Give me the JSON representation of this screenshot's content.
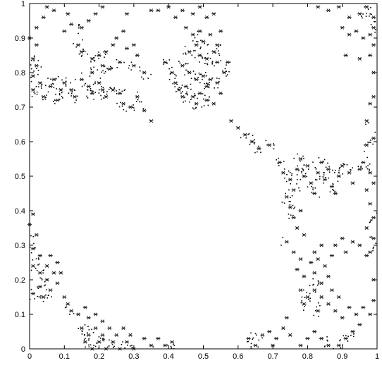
{
  "chart_data": {
    "type": "scatter",
    "title": "",
    "xlabel": "",
    "ylabel": "",
    "xlim": [
      0,
      1
    ],
    "ylim": [
      0,
      1
    ],
    "grid": false,
    "legend": "none",
    "marker_color": "#000000",
    "marker_style": "small cross-shaped motifs forming a fractal (Apollonian-like) packing pattern",
    "x_ticks": [
      "0",
      "0.1",
      "0.2",
      "0.3",
      "0.4",
      "0.5",
      "0.6",
      "0.7",
      "0.8",
      "0.9",
      "1"
    ],
    "y_ticks": [
      "0",
      "0.1",
      "0.2",
      "0.3",
      "0.4",
      "0.5",
      "0.6",
      "0.7",
      "0.8",
      "0.9",
      "1"
    ],
    "empty_regions": [
      {
        "cx": 0.36,
        "cy": 0.35,
        "r": 0.34
      },
      {
        "cx": 0.8,
        "cy": 0.8,
        "r": 0.22
      },
      {
        "cx": 0.32,
        "cy": 1.02,
        "r": 0.19
      },
      {
        "cx": 0.6,
        "cy": 0.99,
        "r": 0.12
      },
      {
        "cx": 0.06,
        "cy": 0.94,
        "r": 0.08
      },
      {
        "cx": 0.17,
        "cy": 0.63,
        "r": 0.06
      },
      {
        "cx": 0.95,
        "cy": 0.17,
        "r": 0.12
      },
      {
        "cx": 0.86,
        "cy": 0.32,
        "r": 0.12
      },
      {
        "cx": 0.76,
        "cy": 0.02,
        "r": 0.09
      },
      {
        "cx": 0.6,
        "cy": 0.7,
        "r": 0.08
      },
      {
        "cx": 0.01,
        "cy": 0.45,
        "r": 0.12
      },
      {
        "cx": 0.22,
        "cy": 0.94,
        "r": 0.05
      },
      {
        "cx": 0.95,
        "cy": 0.45,
        "r": 0.07
      },
      {
        "cx": 0.74,
        "cy": 0.21,
        "r": 0.06
      }
    ],
    "points": [
      [
        0.05,
        0.99
      ],
      [
        0.07,
        0.98
      ],
      [
        0.11,
        0.97
      ],
      [
        0.12,
        0.94
      ],
      [
        0.1,
        0.92
      ],
      [
        0.15,
        0.93
      ],
      [
        0.17,
        0.95
      ],
      [
        0.19,
        0.97
      ],
      [
        0.21,
        0.99
      ],
      [
        0.14,
        0.88
      ],
      [
        0.15,
        0.86
      ],
      [
        0.18,
        0.84
      ],
      [
        0.2,
        0.85
      ],
      [
        0.22,
        0.86
      ],
      [
        0.24,
        0.88
      ],
      [
        0.25,
        0.9
      ],
      [
        0.27,
        0.92
      ],
      [
        0.28,
        0.97
      ],
      [
        0.35,
        0.98
      ],
      [
        0.18,
        0.8
      ],
      [
        0.21,
        0.82
      ],
      [
        0.23,
        0.81
      ],
      [
        0.26,
        0.83
      ],
      [
        0.28,
        0.87
      ],
      [
        0.3,
        0.88
      ],
      [
        0.31,
        0.85
      ],
      [
        0.3,
        0.82
      ],
      [
        0.33,
        0.8
      ],
      [
        0.04,
        0.96
      ],
      [
        0.02,
        0.93
      ],
      [
        0.0,
        0.9
      ],
      [
        0.02,
        0.88
      ],
      [
        0.01,
        0.84
      ],
      [
        0.02,
        0.82
      ],
      [
        0.01,
        0.79
      ],
      [
        0.03,
        0.77
      ],
      [
        0.01,
        0.75
      ],
      [
        0.04,
        0.73
      ],
      [
        0.06,
        0.76
      ],
      [
        0.07,
        0.78
      ],
      [
        0.09,
        0.75
      ],
      [
        0.08,
        0.72
      ],
      [
        0.1,
        0.77
      ],
      [
        0.12,
        0.75
      ],
      [
        0.13,
        0.73
      ],
      [
        0.15,
        0.78
      ],
      [
        0.17,
        0.76
      ],
      [
        0.18,
        0.74
      ],
      [
        0.2,
        0.77
      ],
      [
        0.21,
        0.75
      ],
      [
        0.22,
        0.73
      ],
      [
        0.24,
        0.75
      ],
      [
        0.26,
        0.74
      ],
      [
        0.27,
        0.71
      ],
      [
        0.29,
        0.7
      ],
      [
        0.31,
        0.73
      ],
      [
        0.33,
        0.69
      ],
      [
        0.35,
        0.66
      ],
      [
        0.37,
        0.98
      ],
      [
        0.4,
        0.99
      ],
      [
        0.42,
        0.96
      ],
      [
        0.44,
        0.98
      ],
      [
        0.47,
        0.97
      ],
      [
        0.49,
        0.99
      ],
      [
        0.51,
        0.96
      ],
      [
        0.53,
        0.97
      ],
      [
        0.45,
        0.93
      ],
      [
        0.47,
        0.91
      ],
      [
        0.49,
        0.92
      ],
      [
        0.5,
        0.89
      ],
      [
        0.52,
        0.91
      ],
      [
        0.48,
        0.88
      ],
      [
        0.46,
        0.86
      ],
      [
        0.49,
        0.85
      ],
      [
        0.51,
        0.84
      ],
      [
        0.53,
        0.86
      ],
      [
        0.44,
        0.82
      ],
      [
        0.46,
        0.8
      ],
      [
        0.48,
        0.78
      ],
      [
        0.5,
        0.79
      ],
      [
        0.52,
        0.78
      ],
      [
        0.51,
        0.76
      ],
      [
        0.49,
        0.74
      ],
      [
        0.51,
        0.72
      ],
      [
        0.53,
        0.71
      ],
      [
        0.55,
        0.74
      ],
      [
        0.54,
        0.77
      ],
      [
        0.56,
        0.8
      ],
      [
        0.57,
        0.83
      ],
      [
        0.54,
        0.83
      ],
      [
        0.54,
        0.88
      ],
      [
        0.55,
        0.92
      ],
      [
        0.39,
        0.83
      ],
      [
        0.41,
        0.8
      ],
      [
        0.42,
        0.77
      ],
      [
        0.43,
        0.75
      ],
      [
        0.45,
        0.76
      ],
      [
        0.44,
        0.73
      ],
      [
        0.47,
        0.73
      ],
      [
        0.48,
        0.71
      ],
      [
        0.58,
        0.66
      ],
      [
        0.6,
        0.64
      ],
      [
        0.62,
        0.62
      ],
      [
        0.64,
        0.6
      ],
      [
        0.66,
        0.58
      ],
      [
        0.69,
        0.59
      ],
      [
        0.83,
        0.99
      ],
      [
        0.86,
        0.98
      ],
      [
        0.89,
        0.99
      ],
      [
        0.92,
        0.96
      ],
      [
        0.95,
        0.97
      ],
      [
        0.97,
        0.99
      ],
      [
        0.99,
        0.96
      ],
      [
        0.99,
        0.93
      ],
      [
        0.9,
        0.93
      ],
      [
        0.92,
        0.91
      ],
      [
        0.94,
        0.92
      ],
      [
        0.96,
        0.9
      ],
      [
        0.98,
        0.91
      ],
      [
        0.99,
        0.88
      ],
      [
        0.91,
        0.85
      ],
      [
        0.95,
        0.84
      ],
      [
        0.98,
        0.85
      ],
      [
        0.99,
        0.8
      ],
      [
        0.99,
        0.73
      ],
      [
        0.98,
        0.71
      ],
      [
        0.97,
        0.66
      ],
      [
        0.99,
        0.61
      ],
      [
        0.97,
        0.59
      ],
      [
        0.72,
        0.54
      ],
      [
        0.73,
        0.51
      ],
      [
        0.75,
        0.49
      ],
      [
        0.77,
        0.52
      ],
      [
        0.78,
        0.55
      ],
      [
        0.8,
        0.53
      ],
      [
        0.79,
        0.5
      ],
      [
        0.81,
        0.48
      ],
      [
        0.83,
        0.51
      ],
      [
        0.84,
        0.54
      ],
      [
        0.86,
        0.52
      ],
      [
        0.85,
        0.49
      ],
      [
        0.87,
        0.47
      ],
      [
        0.89,
        0.5
      ],
      [
        0.9,
        0.53
      ],
      [
        0.92,
        0.51
      ],
      [
        0.93,
        0.48
      ],
      [
        0.95,
        0.52
      ],
      [
        0.96,
        0.54
      ],
      [
        0.98,
        0.51
      ],
      [
        0.99,
        0.48
      ],
      [
        0.97,
        0.46
      ],
      [
        0.88,
        0.45
      ],
      [
        0.82,
        0.45
      ],
      [
        0.76,
        0.46
      ],
      [
        0.74,
        0.44
      ],
      [
        0.75,
        0.41
      ],
      [
        0.76,
        0.38
      ],
      [
        0.78,
        0.4
      ],
      [
        0.77,
        0.35
      ],
      [
        0.79,
        0.33
      ],
      [
        0.98,
        0.42
      ],
      [
        0.99,
        0.38
      ],
      [
        0.97,
        0.35
      ],
      [
        0.99,
        0.32
      ],
      [
        0.98,
        0.28
      ],
      [
        0.74,
        0.31
      ],
      [
        0.76,
        0.28
      ],
      [
        0.78,
        0.26
      ],
      [
        0.77,
        0.23
      ],
      [
        0.79,
        0.21
      ],
      [
        0.81,
        0.25
      ],
      [
        0.82,
        0.28
      ],
      [
        0.84,
        0.3
      ],
      [
        0.83,
        0.26
      ],
      [
        0.85,
        0.24
      ],
      [
        0.87,
        0.27
      ],
      [
        0.88,
        0.3
      ],
      [
        0.9,
        0.32
      ],
      [
        0.91,
        0.28
      ],
      [
        0.93,
        0.31
      ],
      [
        0.95,
        0.3
      ],
      [
        0.97,
        0.27
      ],
      [
        0.82,
        0.22
      ],
      [
        0.84,
        0.19
      ],
      [
        0.86,
        0.21
      ],
      [
        0.87,
        0.17
      ],
      [
        0.89,
        0.15
      ],
      [
        0.86,
        0.13
      ],
      [
        0.84,
        0.15
      ],
      [
        0.82,
        0.17
      ],
      [
        0.8,
        0.15
      ],
      [
        0.78,
        0.17
      ],
      [
        0.79,
        0.13
      ],
      [
        0.83,
        0.11
      ],
      [
        0.88,
        0.11
      ],
      [
        0.9,
        0.09
      ],
      [
        0.92,
        0.12
      ],
      [
        0.94,
        0.1
      ],
      [
        0.96,
        0.12
      ],
      [
        0.98,
        0.1
      ],
      [
        0.99,
        0.14
      ],
      [
        0.99,
        0.2
      ],
      [
        0.95,
        0.07
      ],
      [
        0.93,
        0.05
      ],
      [
        0.91,
        0.03
      ],
      [
        0.89,
        0.01
      ],
      [
        0.74,
        0.09
      ],
      [
        0.73,
        0.06
      ],
      [
        0.75,
        0.04
      ],
      [
        0.71,
        0.03
      ],
      [
        0.69,
        0.05
      ],
      [
        0.67,
        0.04
      ],
      [
        0.7,
        0.01
      ],
      [
        0.78,
        0.01
      ],
      [
        0.8,
        0.03
      ],
      [
        0.82,
        0.05
      ],
      [
        0.84,
        0.03
      ],
      [
        0.86,
        0.01
      ],
      [
        0.65,
        0.01
      ],
      [
        0.63,
        0.03
      ],
      [
        0.01,
        0.39
      ],
      [
        0.0,
        0.36
      ],
      [
        0.02,
        0.33
      ],
      [
        0.01,
        0.29
      ],
      [
        0.03,
        0.27
      ],
      [
        0.01,
        0.24
      ],
      [
        0.03,
        0.22
      ],
      [
        0.05,
        0.24
      ],
      [
        0.06,
        0.27
      ],
      [
        0.08,
        0.25
      ],
      [
        0.07,
        0.22
      ],
      [
        0.05,
        0.2
      ],
      [
        0.03,
        0.18
      ],
      [
        0.01,
        0.16
      ],
      [
        0.04,
        0.15
      ],
      [
        0.06,
        0.17
      ],
      [
        0.08,
        0.19
      ],
      [
        0.09,
        0.22
      ],
      [
        0.1,
        0.15
      ],
      [
        0.11,
        0.13
      ],
      [
        0.12,
        0.11
      ],
      [
        0.14,
        0.1
      ],
      [
        0.16,
        0.12
      ],
      [
        0.17,
        0.09
      ],
      [
        0.19,
        0.1
      ],
      [
        0.21,
        0.08
      ],
      [
        0.15,
        0.06
      ],
      [
        0.17,
        0.04
      ],
      [
        0.19,
        0.06
      ],
      [
        0.21,
        0.04
      ],
      [
        0.23,
        0.06
      ],
      [
        0.25,
        0.04
      ],
      [
        0.27,
        0.06
      ],
      [
        0.29,
        0.04
      ],
      [
        0.16,
        0.02
      ],
      [
        0.18,
        0.0
      ],
      [
        0.2,
        0.02
      ],
      [
        0.22,
        0.0
      ],
      [
        0.24,
        0.02
      ],
      [
        0.26,
        0.0
      ],
      [
        0.28,
        0.02
      ],
      [
        0.3,
        0.0
      ],
      [
        0.33,
        0.03
      ],
      [
        0.35,
        0.01
      ],
      [
        0.37,
        0.03
      ],
      [
        0.39,
        0.01
      ],
      [
        0.41,
        0.02
      ]
    ]
  }
}
